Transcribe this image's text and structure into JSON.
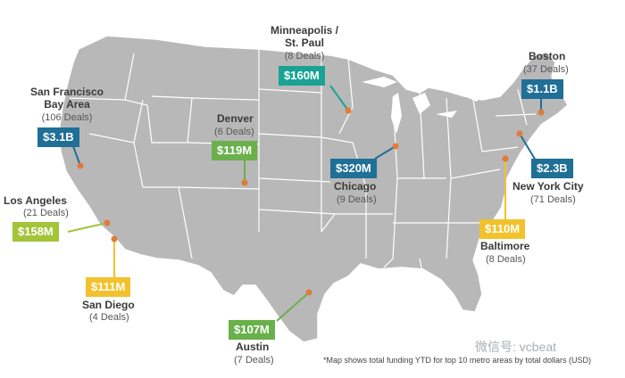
{
  "colors": {
    "land": "#b8b8b8",
    "border": "#ffffff",
    "marker": "#e07b39",
    "blue": "#1f6f97",
    "teal": "#1aa394",
    "green": "#6ab04c",
    "lime": "#a4c43a",
    "yellow": "#f2c12e"
  },
  "cities": [
    {
      "key": "sf",
      "name": "San Francisco\nBay Area",
      "deals": "(106 Deals)",
      "amount": "$3.1B",
      "color": "blue"
    },
    {
      "key": "la",
      "name": "Los Angeles",
      "deals": "(21 Deals)",
      "amount": "$158M",
      "color": "lime"
    },
    {
      "key": "sd",
      "name": "San Diego",
      "deals": "(4 Deals)",
      "amount": "$111M",
      "color": "yellow"
    },
    {
      "key": "denver",
      "name": "Denver",
      "deals": "(6 Deals)",
      "amount": "$119M",
      "color": "green"
    },
    {
      "key": "austin",
      "name": "Austin",
      "deals": "(7 Deals)",
      "amount": "$107M",
      "color": "green"
    },
    {
      "key": "msp",
      "name": "Minneapolis /\nSt. Paul",
      "deals": "(8 Deals)",
      "amount": "$160M",
      "color": "teal"
    },
    {
      "key": "chicago",
      "name": "Chicago",
      "deals": "(9 Deals)",
      "amount": "$320M",
      "color": "blue"
    },
    {
      "key": "boston",
      "name": "Boston",
      "deals": "(37 Deals)",
      "amount": "$1.1B",
      "color": "blue"
    },
    {
      "key": "nyc",
      "name": "New York City",
      "deals": "(71 Deals)",
      "amount": "$2.3B",
      "color": "blue"
    },
    {
      "key": "baltimore",
      "name": "Baltimore",
      "deals": "(8 Deals)",
      "amount": "$110M",
      "color": "yellow"
    }
  ],
  "footnote": "*Map shows total funding YTD for top 10 metro areas by total dollars (USD)",
  "watermark": "微信号: vcbeat"
}
